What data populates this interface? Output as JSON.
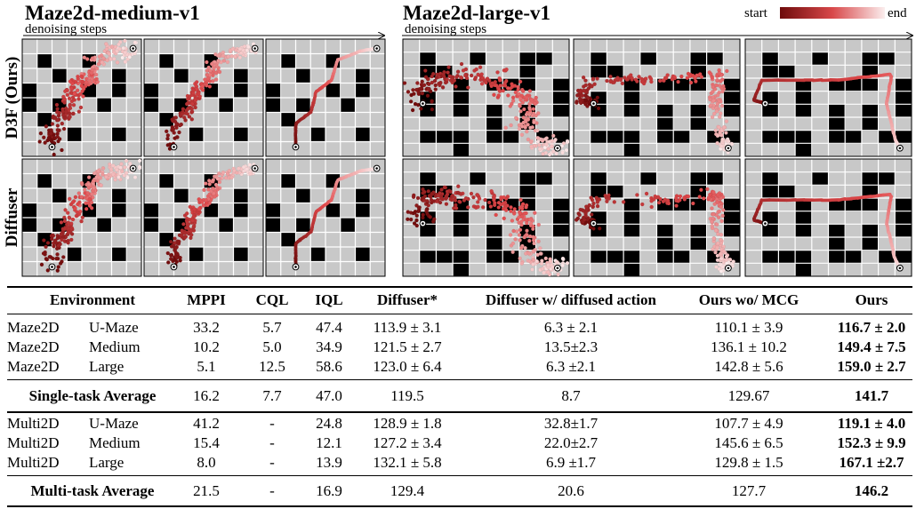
{
  "figure": {
    "left_title": "Maze2d-medium-v1",
    "right_title": "Maze2d-large-v1",
    "left_subtitle": "denoising steps",
    "right_subtitle": "denoising steps",
    "row_labels": [
      "D3F (Ours)",
      "Diffuser"
    ],
    "legend": {
      "start": "start",
      "end": "end",
      "colors": [
        "#6e0b0b",
        "#fbeeee"
      ]
    }
  },
  "table": {
    "headers": [
      "Environment",
      "MPPI",
      "CQL",
      "IQL",
      "Diffuser*",
      "Diffuser w/ diffused action",
      "Ours wo/ MCG",
      "Ours"
    ],
    "single": [
      {
        "env": "Maze2D",
        "task": "U-Maze",
        "vals": [
          "33.2",
          "5.7",
          "47.4",
          "113.9 ± 3.1",
          "6.3 ± 2.1",
          "110.1 ± 3.9",
          "116.7 ± 2.0"
        ]
      },
      {
        "env": "Maze2D",
        "task": "Medium",
        "vals": [
          "10.2",
          "5.0",
          "34.9",
          "121.5 ± 2.7",
          "13.5±2.3",
          "136.1 ± 10.2",
          "149.4 ± 7.5"
        ]
      },
      {
        "env": "Maze2D",
        "task": "Large",
        "vals": [
          "5.1",
          "12.5",
          "58.6",
          "123.0 ± 6.4",
          "6.3 ±2.1",
          "142.8 ± 5.6",
          "159.0 ± 2.7"
        ]
      }
    ],
    "single_avg": {
      "label": "Single-task Average",
      "vals": [
        "16.2",
        "7.7",
        "47.0",
        "119.5",
        "8.7",
        "129.67",
        "141.7"
      ]
    },
    "multi": [
      {
        "env": "Multi2D",
        "task": "U-Maze",
        "vals": [
          "41.2",
          "-",
          "24.8",
          "128.9 ± 1.8",
          "32.8±1.7",
          "107.7 ± 4.9",
          "119.1 ± 4.0"
        ]
      },
      {
        "env": "Multi2D",
        "task": "Medium",
        "vals": [
          "15.4",
          "-",
          "12.1",
          "127.2 ± 3.4",
          "22.0±2.7",
          "145.6 ± 6.5",
          "152.3 ± 9.9"
        ]
      },
      {
        "env": "Multi2D",
        "task": "Large",
        "vals": [
          "8.0",
          "-",
          "13.9",
          "132.1 ± 5.8",
          "6.9 ±1.7",
          "129.8 ± 1.5",
          "167.1 ±2.7"
        ]
      }
    ],
    "multi_avg": {
      "label": "Multi-task Average",
      "vals": [
        "21.5",
        "-",
        "16.9",
        "129.4",
        "20.6",
        "127.7",
        "146.2"
      ]
    }
  }
}
